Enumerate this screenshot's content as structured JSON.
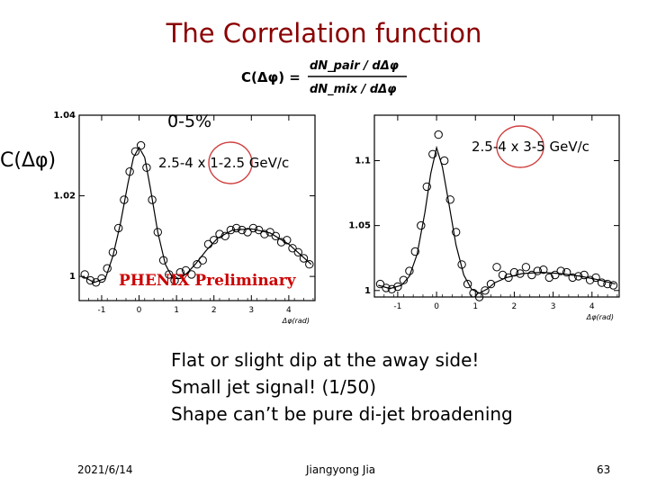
{
  "slide": {
    "title": "The Correlation function",
    "formula": {
      "lhs": "C(Δφ) =",
      "numerator": "dN_pair / dΔφ",
      "denominator": "dN_mix / dΔφ"
    },
    "centrality": "0-5%",
    "yaxis_label": "C(Δφ)",
    "preliminary": "PHENIX Preliminary",
    "notes": [
      "Flat or slight dip at the away side!",
      "Small jet signal! (1/50)",
      "Shape can’t be pure di-jet broadening"
    ],
    "footer": {
      "date": "2021/6/14",
      "author": "Jiangyong Jia",
      "page": "63"
    }
  },
  "colors": {
    "title": "#8b0000",
    "preliminary": "#cc0000",
    "circle": "#d04040"
  },
  "chart_data": [
    {
      "type": "scatter",
      "label": "2.5-4 x 1-2.5 GeV/c",
      "xlabel": "Δφ(rad)",
      "xlim": [
        -1.6,
        4.7
      ],
      "ylim": [
        0.994,
        1.04
      ],
      "xticks": [
        -1,
        0,
        1,
        2,
        3,
        4
      ],
      "yticks": [
        {
          "v": 1.0,
          "t": "1"
        },
        {
          "v": 1.02,
          "t": "1.02"
        },
        {
          "v": 1.04,
          "t": "1.04"
        }
      ],
      "x": [
        -1.45,
        -1.3,
        -1.15,
        -1.0,
        -0.85,
        -0.7,
        -0.55,
        -0.4,
        -0.25,
        -0.1,
        0.05,
        0.2,
        0.35,
        0.5,
        0.65,
        0.8,
        0.95,
        1.1,
        1.25,
        1.4,
        1.55,
        1.7,
        1.85,
        2.0,
        2.15,
        2.3,
        2.45,
        2.6,
        2.75,
        2.9,
        3.05,
        3.2,
        3.35,
        3.5,
        3.65,
        3.8,
        3.95,
        4.1,
        4.25,
        4.4,
        4.55
      ],
      "y": [
        1.0005,
        0.999,
        0.9985,
        0.9995,
        1.002,
        1.006,
        1.012,
        1.019,
        1.026,
        1.031,
        1.0325,
        1.027,
        1.019,
        1.011,
        1.004,
        1.0005,
        0.999,
        1.001,
        1.0015,
        1.0005,
        1.003,
        1.004,
        1.008,
        1.009,
        1.0105,
        1.01,
        1.0115,
        1.012,
        1.0115,
        1.011,
        1.012,
        1.0115,
        1.0105,
        1.011,
        1.01,
        1.0085,
        1.009,
        1.007,
        1.006,
        1.0045,
        1.003
      ],
      "fit_x": [
        -1.5,
        -1.2,
        -0.9,
        -0.7,
        -0.5,
        -0.3,
        -0.15,
        0.0,
        0.15,
        0.3,
        0.5,
        0.7,
        0.9,
        1.1,
        1.3,
        1.5,
        1.8,
        2.1,
        2.5,
        3.0,
        3.5,
        4.0,
        4.6
      ],
      "fit_y": [
        1.0,
        0.9985,
        0.9995,
        1.005,
        1.013,
        1.023,
        1.0295,
        1.032,
        1.0295,
        1.022,
        1.011,
        1.003,
        0.9995,
        0.9995,
        1.001,
        1.003,
        1.0065,
        1.0095,
        1.0115,
        1.0118,
        1.0108,
        1.008,
        1.003
      ]
    },
    {
      "type": "scatter",
      "label": "2.5-4 x 3-5 GeV/c",
      "xlabel": "Δφ(rad)",
      "xlim": [
        -1.6,
        4.7
      ],
      "ylim": [
        0.995,
        1.135
      ],
      "xticks": [
        -1,
        0,
        1,
        2,
        3,
        4
      ],
      "yticks": [
        {
          "v": 1.0,
          "t": "1"
        },
        {
          "v": 1.05,
          "t": "1.05"
        },
        {
          "v": 1.1,
          "t": "1.1"
        }
      ],
      "x": [
        -1.45,
        -1.3,
        -1.15,
        -1.0,
        -0.85,
        -0.7,
        -0.55,
        -0.4,
        -0.25,
        -0.1,
        0.05,
        0.2,
        0.35,
        0.5,
        0.65,
        0.8,
        0.95,
        1.1,
        1.25,
        1.4,
        1.55,
        1.7,
        1.85,
        2.0,
        2.15,
        2.3,
        2.45,
        2.6,
        2.75,
        2.9,
        3.05,
        3.2,
        3.35,
        3.5,
        3.65,
        3.8,
        3.95,
        4.1,
        4.25,
        4.4,
        4.55
      ],
      "y": [
        1.005,
        1.002,
        1.001,
        1.003,
        1.008,
        1.015,
        1.03,
        1.05,
        1.08,
        1.105,
        1.12,
        1.1,
        1.07,
        1.045,
        1.02,
        1.005,
        0.998,
        0.995,
        1.0,
        1.005,
        1.018,
        1.012,
        1.01,
        1.014,
        1.013,
        1.018,
        1.012,
        1.015,
        1.016,
        1.01,
        1.012,
        1.015,
        1.014,
        1.01,
        1.011,
        1.012,
        1.008,
        1.01,
        1.006,
        1.005,
        1.004
      ],
      "fit_x": [
        -1.5,
        -1.2,
        -0.9,
        -0.7,
        -0.5,
        -0.3,
        -0.15,
        0.0,
        0.15,
        0.3,
        0.5,
        0.7,
        0.9,
        1.1,
        1.3,
        1.5,
        1.8,
        2.2,
        2.7,
        3.2,
        3.7,
        4.2,
        4.6
      ],
      "fit_y": [
        1.004,
        1.0015,
        1.004,
        1.011,
        1.028,
        1.06,
        1.09,
        1.11,
        1.095,
        1.07,
        1.035,
        1.012,
        1.001,
        0.998,
        1.001,
        1.006,
        1.01,
        1.013,
        1.014,
        1.013,
        1.011,
        1.008,
        1.005
      ]
    }
  ]
}
